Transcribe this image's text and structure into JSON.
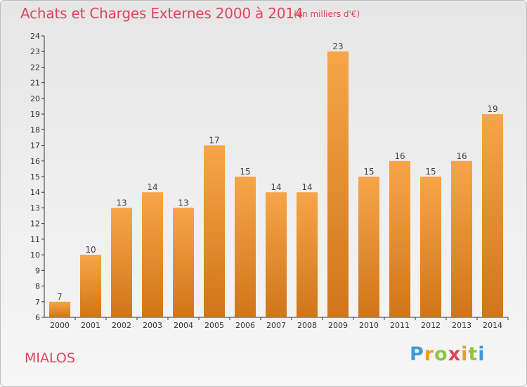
{
  "header": {
    "title": "Achats et Charges Externes 2000 à 2014",
    "unit": "(en milliers d'€)"
  },
  "footer": {
    "commune": "MIALOS",
    "logo_text": "Proxiti"
  },
  "colors": {
    "bar_top": "#f7a548",
    "bar_bottom": "#d0751a",
    "title": "#e0445a"
  },
  "chart_data": {
    "type": "bar",
    "title": "Achats et Charges Externes 2000 à 2014",
    "subtitle": "(en milliers d'€)",
    "xlabel": "",
    "ylabel": "",
    "categories": [
      "2000",
      "2001",
      "2002",
      "2003",
      "2004",
      "2005",
      "2006",
      "2007",
      "2008",
      "2009",
      "2010",
      "2011",
      "2012",
      "2013",
      "2014"
    ],
    "values": [
      7,
      10,
      13,
      14,
      13,
      17,
      15,
      14,
      14,
      23,
      15,
      16,
      15,
      16,
      19
    ],
    "ylim": [
      6,
      24
    ],
    "yticks": [
      6,
      7,
      8,
      9,
      10,
      11,
      12,
      13,
      14,
      15,
      16,
      17,
      18,
      19,
      20,
      21,
      22,
      23,
      24
    ],
    "grid": false,
    "legend": "none"
  }
}
